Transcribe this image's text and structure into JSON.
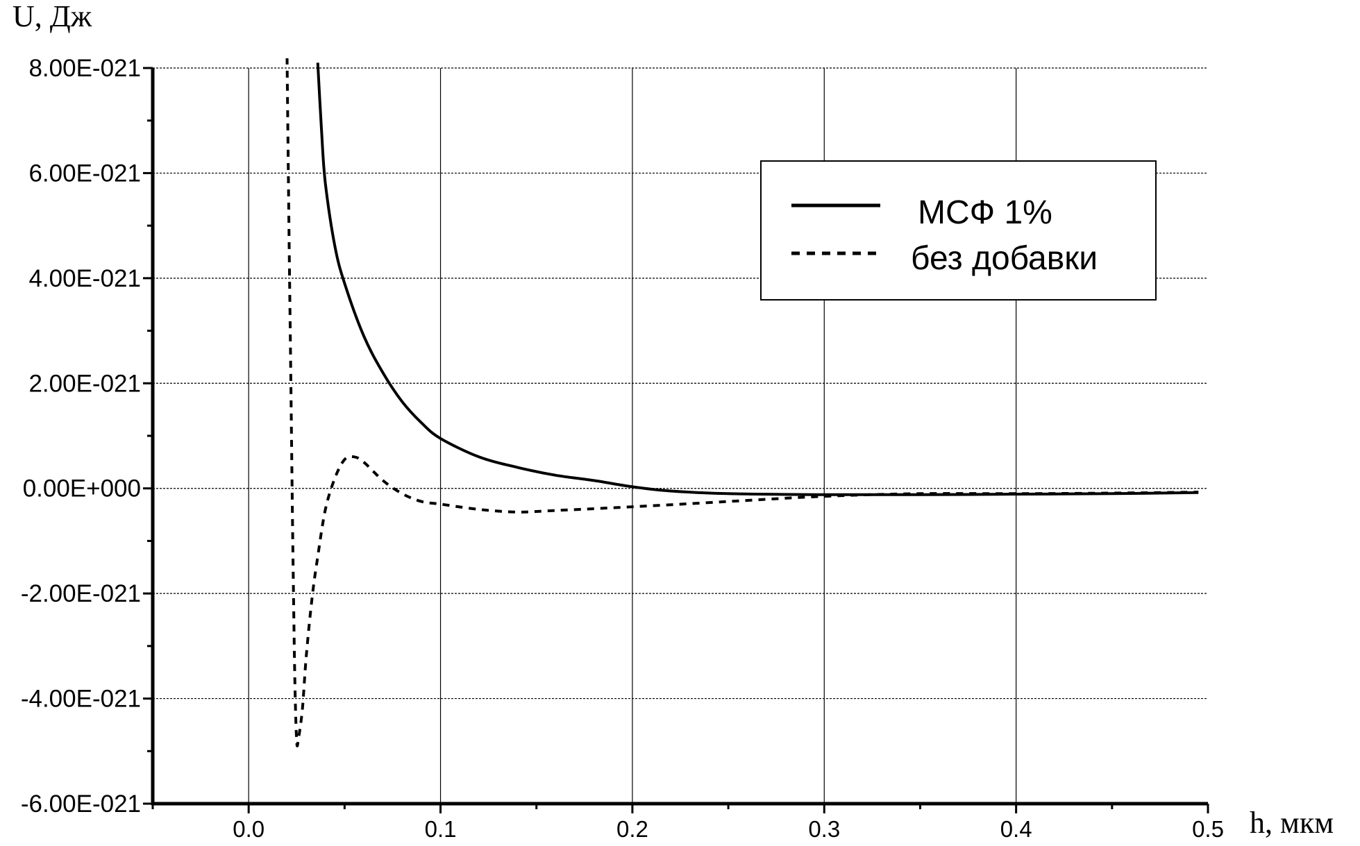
{
  "chart_data": {
    "type": "line",
    "ylabel": "U, Дж",
    "xlabel": "h, мкм",
    "xlim": [
      -0.05,
      0.5
    ],
    "ylim": [
      -6e-21,
      8e-21
    ],
    "x_ticks": [
      0.0,
      0.1,
      0.2,
      0.3,
      0.4,
      0.5
    ],
    "x_tick_labels": [
      "0.0",
      "0.1",
      "0.2",
      "0.3",
      "0.4",
      "0.5"
    ],
    "y_ticks": [
      8e-21,
      6e-21,
      4e-21,
      2e-21,
      0,
      -2e-21,
      -4e-21,
      -6e-21
    ],
    "y_tick_labels": [
      "8.00E-021",
      "6.00E-021",
      "4.00E-021",
      "2.00E-021",
      "0.00E+000",
      "-2.00E-021",
      "-4.00E-021",
      "-6.00E-021"
    ],
    "grid": true,
    "legend_position": "top-right",
    "series": [
      {
        "name": "МСФ 1%",
        "style": "solid",
        "color": "#000000",
        "x": [
          0.036,
          0.038,
          0.04,
          0.045,
          0.05,
          0.06,
          0.07,
          0.08,
          0.09,
          0.1,
          0.12,
          0.14,
          0.16,
          0.18,
          0.2,
          0.22,
          0.25,
          0.3,
          0.35,
          0.4,
          0.45,
          0.495
        ],
        "y": [
          8.1e-21,
          6.8e-21,
          5.8e-21,
          4.6e-21,
          3.9e-21,
          2.9e-21,
          2.2e-21,
          1.65e-21,
          1.25e-21,
          9.5e-22,
          6e-22,
          4e-22,
          2.5e-22,
          1.5e-22,
          3e-23,
          -5e-23,
          -1e-22,
          -1.2e-22,
          -1.2e-22,
          -1.1e-22,
          -1e-22,
          -8e-23
        ]
      },
      {
        "name": "без добавки",
        "style": "dashed",
        "color": "#000000",
        "x": [
          0.02,
          0.021,
          0.022,
          0.023,
          0.024,
          0.025,
          0.026,
          0.028,
          0.03,
          0.033,
          0.036,
          0.04,
          0.045,
          0.05,
          0.055,
          0.06,
          0.07,
          0.08,
          0.09,
          0.1,
          0.12,
          0.14,
          0.16,
          0.2,
          0.25,
          0.3,
          0.35,
          0.4,
          0.45,
          0.495
        ],
        "y": [
          8.2e-21,
          5e-21,
          2e-21,
          -1e-21,
          -3.5e-21,
          -4.8e-21,
          -4.75e-21,
          -4.2e-21,
          -3.2e-21,
          -2.1e-21,
          -1.3e-21,
          -4e-22,
          2e-22,
          5.5e-22,
          6e-22,
          5e-22,
          1.5e-22,
          -1e-22,
          -2.5e-22,
          -3e-22,
          -4e-22,
          -4.5e-22,
          -4.2e-22,
          -3.5e-22,
          -2.5e-22,
          -1.5e-22,
          -1e-22,
          -1e-22,
          -9e-23,
          -7e-23
        ]
      }
    ]
  }
}
